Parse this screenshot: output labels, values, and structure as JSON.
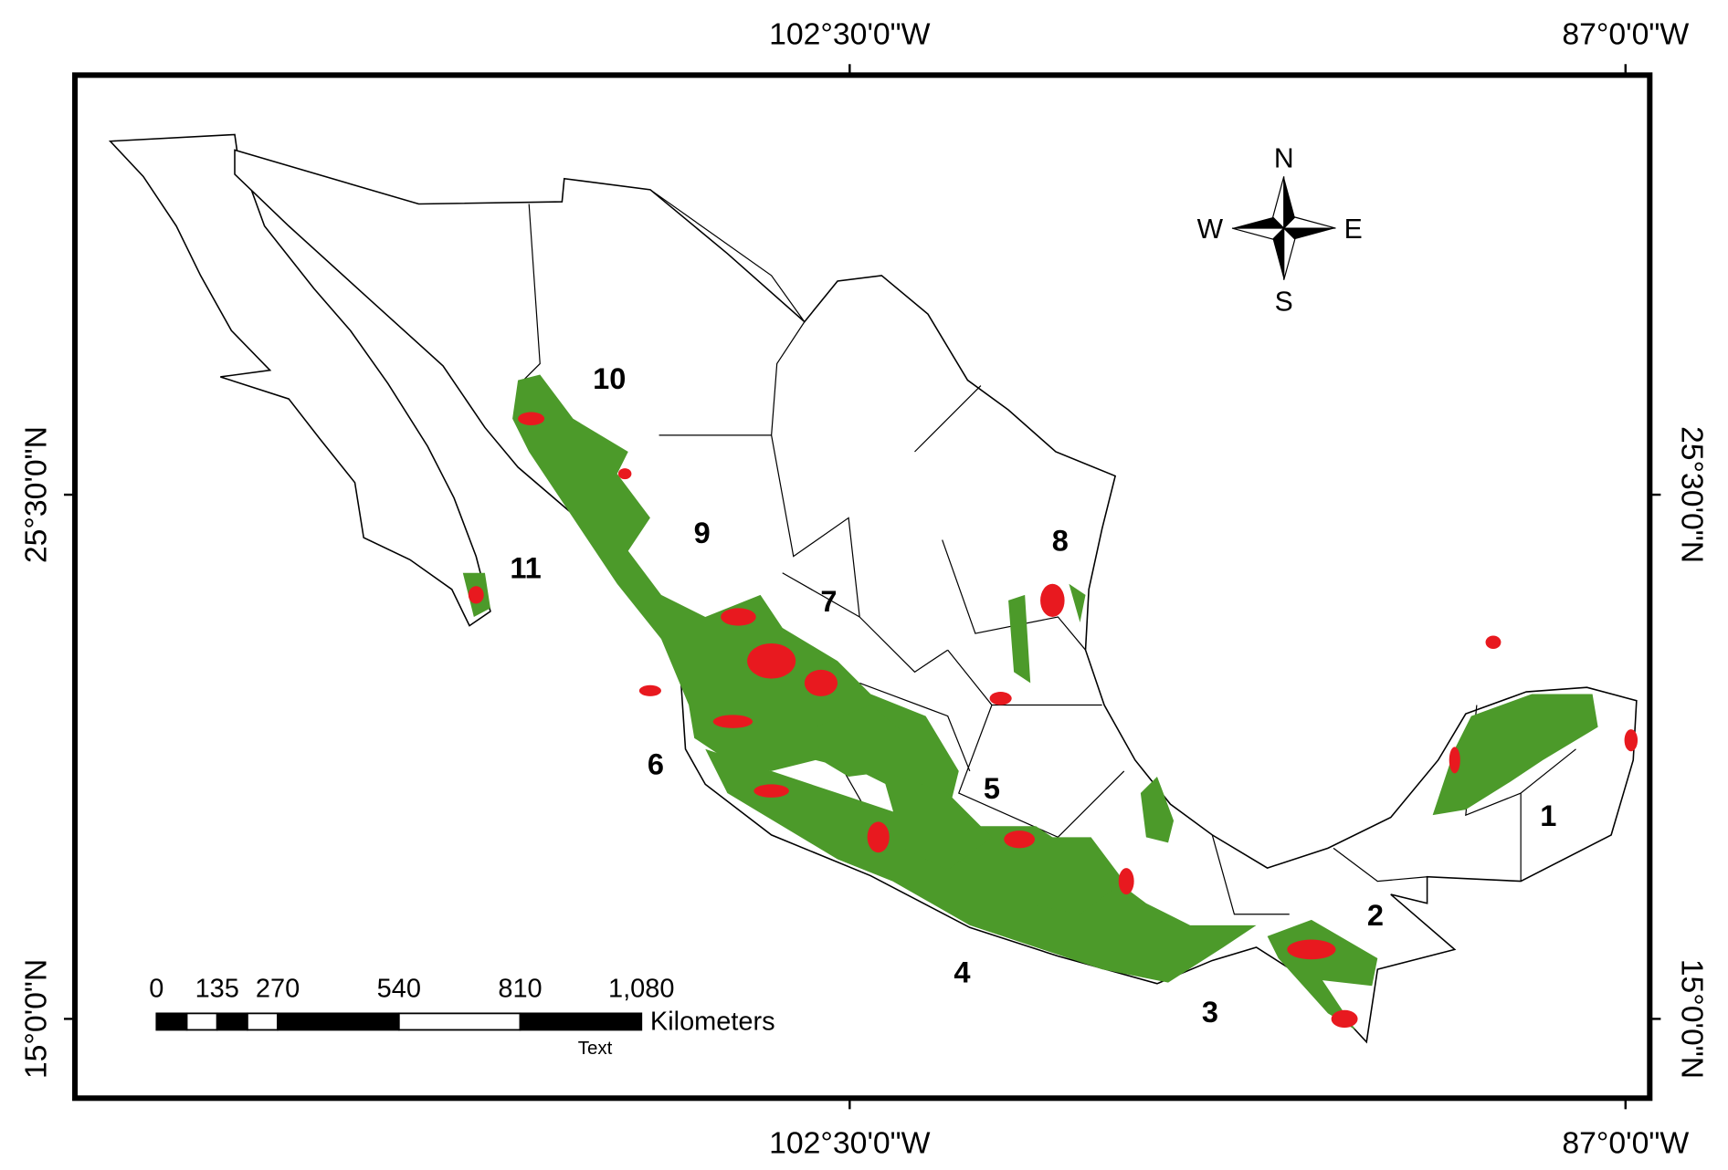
{
  "longitude_labels": [
    "102°30'0\"W",
    "87°0'0\"W"
  ],
  "latitude_labels": [
    "25°30'0\"N",
    "15°0'0\"N"
  ],
  "regions": [
    "1",
    "2",
    "3",
    "4",
    "5",
    "6",
    "7",
    "8",
    "9",
    "10",
    "11"
  ],
  "compass": {
    "north": "N",
    "south": "S",
    "west": "W",
    "east": "E"
  },
  "scale_bar": {
    "ticks": [
      0,
      135,
      270,
      540,
      810,
      {
        "value": 1080,
        "label": "1,080"
      }
    ],
    "unit": "Kilometers",
    "note": "Text"
  }
}
